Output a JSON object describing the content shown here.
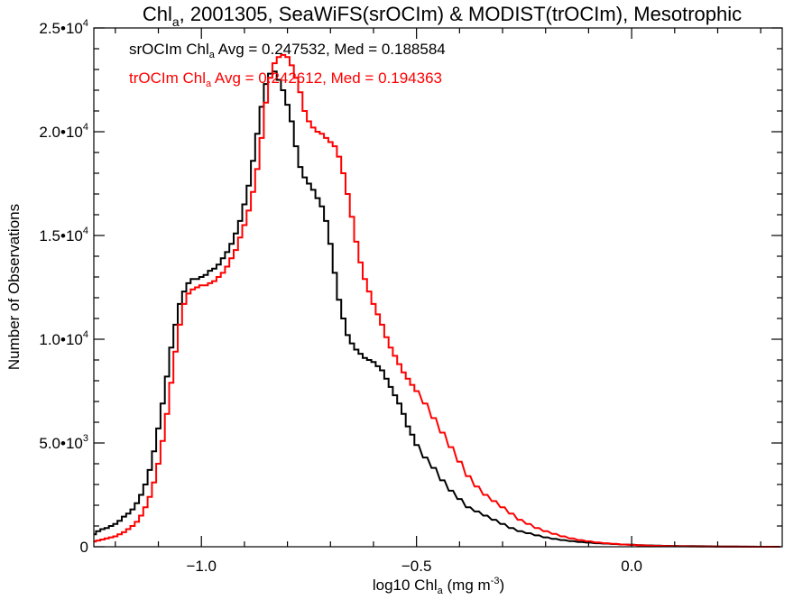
{
  "chart_data": {
    "type": "line",
    "title": {
      "pre": "Chl",
      "sub": "a",
      "post": ", 2001305, SeaWiFS(srOCIm) & MODIST(trOCIm), Mesotrophic"
    },
    "xlabel": {
      "pre": "log10 Chl",
      "sub": "a",
      "mid": " (mg m",
      "sup": "-3",
      "post": ")"
    },
    "ylabel": "Number of Observations",
    "xlim": [
      -1.25,
      0.35
    ],
    "ylim": [
      0,
      25000
    ],
    "x_ticks": [
      {
        "value": -1.0,
        "label": "−1.0"
      },
      {
        "value": -0.5,
        "label": "−0.5"
      },
      {
        "value": 0.0,
        "label": "0.0"
      }
    ],
    "y_ticks": [
      {
        "value": 0,
        "mant": "0",
        "exp": ""
      },
      {
        "value": 5000,
        "mant": "5.0•10",
        "exp": "3"
      },
      {
        "value": 10000,
        "mant": "1.0•10",
        "exp": "4"
      },
      {
        "value": 15000,
        "mant": "1.5•10",
        "exp": "4"
      },
      {
        "value": 20000,
        "mant": "2.0•10",
        "exp": "4"
      },
      {
        "value": 25000,
        "mant": "2.5•10",
        "exp": "4"
      }
    ],
    "grid": false,
    "step": 0.01,
    "series": [
      {
        "name": "srOCIm",
        "color": "#000000",
        "legend": {
          "pre": "srOCIm Chl",
          "sub": "a",
          "post": " Avg = 0.247532, Med = 0.188584"
        },
        "x": [
          -1.25,
          -1.24,
          -1.23,
          -1.22,
          -1.21,
          -1.2,
          -1.19,
          -1.18,
          -1.17,
          -1.16,
          -1.15,
          -1.14,
          -1.13,
          -1.12,
          -1.11,
          -1.1,
          -1.09,
          -1.08,
          -1.07,
          -1.06,
          -1.05,
          -1.04,
          -1.03,
          -1.02,
          -1.01,
          -1.0,
          -0.99,
          -0.98,
          -0.97,
          -0.96,
          -0.95,
          -0.94,
          -0.93,
          -0.92,
          -0.91,
          -0.9,
          -0.89,
          -0.88,
          -0.87,
          -0.86,
          -0.85,
          -0.84,
          -0.83,
          -0.82,
          -0.81,
          -0.8,
          -0.79,
          -0.78,
          -0.77,
          -0.76,
          -0.75,
          -0.74,
          -0.73,
          -0.72,
          -0.71,
          -0.7,
          -0.69,
          -0.68,
          -0.67,
          -0.66,
          -0.65,
          -0.64,
          -0.63,
          -0.62,
          -0.61,
          -0.6,
          -0.59,
          -0.58,
          -0.57,
          -0.56,
          -0.55,
          -0.54,
          -0.53,
          -0.52,
          -0.51,
          -0.5,
          -0.48,
          -0.46,
          -0.44,
          -0.42,
          -0.4,
          -0.38,
          -0.36,
          -0.34,
          -0.32,
          -0.3,
          -0.28,
          -0.26,
          -0.24,
          -0.22,
          -0.2,
          -0.18,
          -0.16,
          -0.14,
          -0.12,
          -0.1,
          -0.08,
          -0.06,
          -0.04,
          -0.02,
          0.0,
          0.02,
          0.04,
          0.06,
          0.08,
          0.1,
          0.12,
          0.14,
          0.16,
          0.18,
          0.2,
          0.22,
          0.24,
          0.26,
          0.28,
          0.3,
          0.32,
          0.34
        ],
        "y": [
          600,
          750,
          850,
          900,
          1000,
          1100,
          1250,
          1450,
          1600,
          1800,
          2100,
          2500,
          3000,
          3700,
          4600,
          5700,
          6900,
          8200,
          9600,
          10700,
          11700,
          12300,
          12700,
          12900,
          12900,
          13000,
          13100,
          13300,
          13400,
          13600,
          13900,
          14200,
          14600,
          15100,
          15700,
          16500,
          17400,
          18600,
          19900,
          21200,
          22300,
          22800,
          22900,
          22500,
          22000,
          21300,
          20500,
          19300,
          18300,
          17800,
          17500,
          17200,
          16800,
          16400,
          15700,
          14600,
          13200,
          11900,
          11000,
          10200,
          9800,
          9500,
          9300,
          9100,
          9000,
          8900,
          8700,
          8500,
          8100,
          7700,
          7300,
          6900,
          6400,
          5800,
          5400,
          4900,
          4300,
          3800,
          3200,
          2700,
          2300,
          1900,
          1700,
          1500,
          1300,
          1100,
          900,
          750,
          650,
          550,
          450,
          380,
          320,
          270,
          230,
          200,
          170,
          150,
          130,
          110,
          95,
          80,
          65,
          55,
          45,
          40,
          35,
          30,
          25,
          20,
          15,
          10,
          8,
          5,
          3,
          2,
          1,
          0
        ]
      },
      {
        "name": "trOCIm",
        "color": "#ff0000",
        "legend": {
          "pre": "trOCIm Chl",
          "sub": "a",
          "post": " Avg = 0.242612, Med = 0.194363"
        },
        "x": [
          -1.25,
          -1.24,
          -1.23,
          -1.22,
          -1.21,
          -1.2,
          -1.19,
          -1.18,
          -1.17,
          -1.16,
          -1.15,
          -1.14,
          -1.13,
          -1.12,
          -1.11,
          -1.1,
          -1.09,
          -1.08,
          -1.07,
          -1.06,
          -1.05,
          -1.04,
          -1.03,
          -1.02,
          -1.01,
          -1.0,
          -0.99,
          -0.98,
          -0.97,
          -0.96,
          -0.95,
          -0.94,
          -0.93,
          -0.92,
          -0.91,
          -0.9,
          -0.89,
          -0.88,
          -0.87,
          -0.86,
          -0.85,
          -0.84,
          -0.83,
          -0.82,
          -0.81,
          -0.8,
          -0.79,
          -0.78,
          -0.77,
          -0.76,
          -0.75,
          -0.74,
          -0.73,
          -0.72,
          -0.71,
          -0.7,
          -0.69,
          -0.68,
          -0.67,
          -0.66,
          -0.65,
          -0.64,
          -0.63,
          -0.62,
          -0.61,
          -0.6,
          -0.59,
          -0.58,
          -0.57,
          -0.56,
          -0.55,
          -0.54,
          -0.53,
          -0.52,
          -0.51,
          -0.5,
          -0.48,
          -0.46,
          -0.44,
          -0.42,
          -0.4,
          -0.38,
          -0.36,
          -0.34,
          -0.32,
          -0.3,
          -0.28,
          -0.26,
          -0.24,
          -0.22,
          -0.2,
          -0.18,
          -0.16,
          -0.14,
          -0.12,
          -0.1,
          -0.08,
          -0.06,
          -0.04,
          -0.02,
          0.0,
          0.02,
          0.04,
          0.06,
          0.08,
          0.1,
          0.12,
          0.14,
          0.16,
          0.18,
          0.2,
          0.22,
          0.24,
          0.26,
          0.28,
          0.3,
          0.32,
          0.34
        ],
        "y": [
          250,
          300,
          350,
          400,
          450,
          500,
          600,
          700,
          850,
          1000,
          1200,
          1500,
          1900,
          2400,
          3100,
          4000,
          5100,
          6400,
          7900,
          9400,
          10700,
          11700,
          12200,
          12400,
          12500,
          12600,
          12600,
          12700,
          12800,
          13000,
          13200,
          13500,
          13900,
          14300,
          14900,
          15500,
          16200,
          17100,
          18200,
          19700,
          21400,
          22600,
          23300,
          23600,
          23700,
          23600,
          23200,
          22600,
          21900,
          21000,
          20500,
          20200,
          20000,
          19900,
          19700,
          19500,
          19300,
          18800,
          18000,
          17000,
          15900,
          14700,
          13700,
          12900,
          12300,
          11700,
          11200,
          10700,
          10100,
          9600,
          9200,
          8800,
          8400,
          8100,
          7800,
          7500,
          6900,
          6200,
          5500,
          4800,
          4100,
          3400,
          2900,
          2500,
          2200,
          1900,
          1600,
          1300,
          1100,
          900,
          750,
          620,
          500,
          400,
          320,
          260,
          210,
          170,
          140,
          110,
          90,
          70,
          55,
          45,
          35,
          28,
          22,
          18,
          14,
          10,
          8,
          6,
          4,
          3,
          2,
          1,
          0,
          0
        ]
      }
    ]
  }
}
